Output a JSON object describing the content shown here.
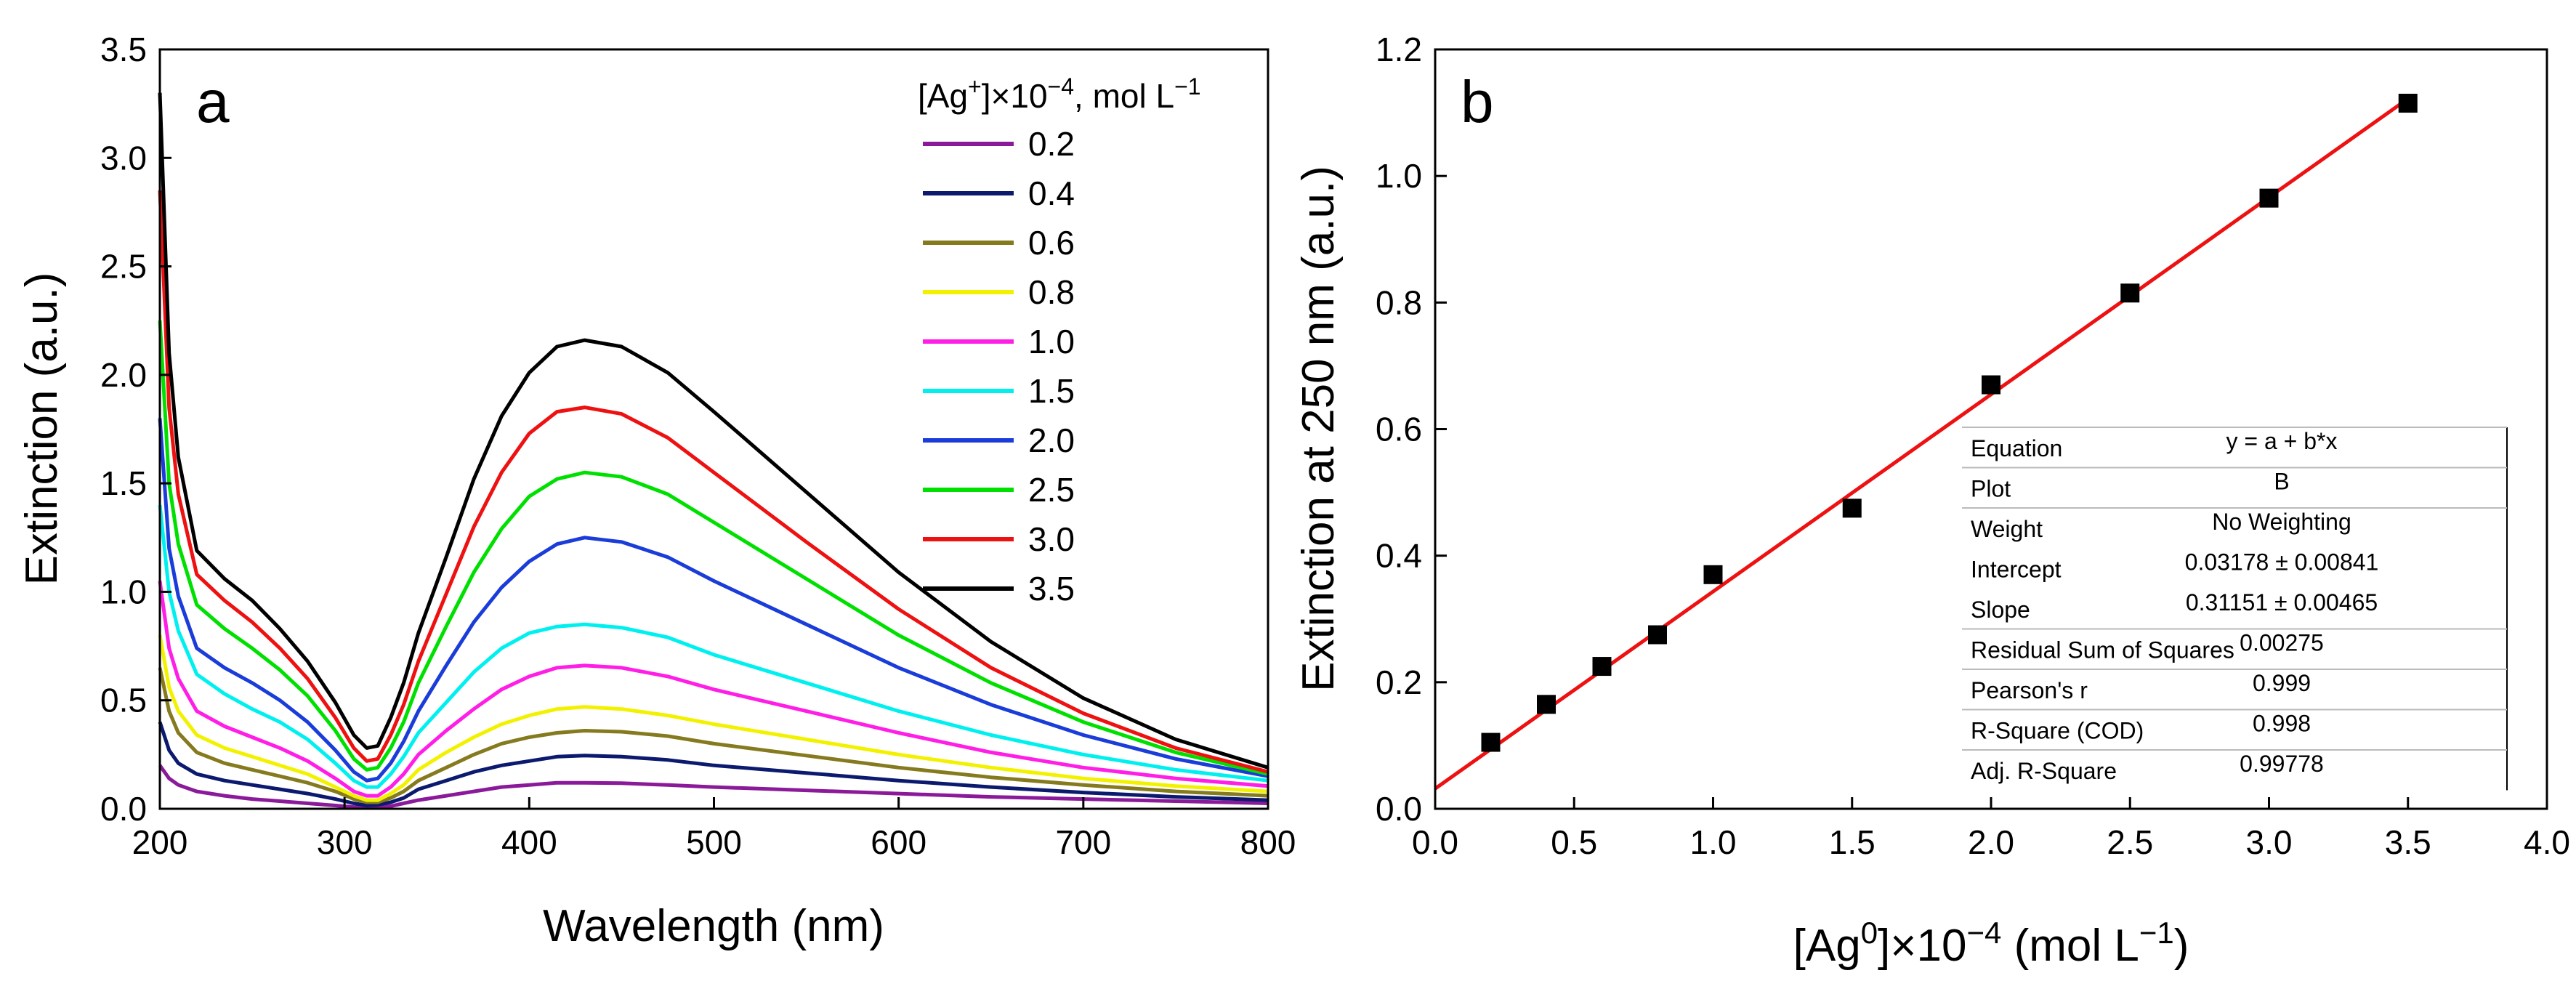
{
  "chart_data": [
    {
      "type": "line",
      "panel_label": "a",
      "xlabel": "Wavelength (nm)",
      "ylabel": "Extinction (a.u.)",
      "xlim": [
        200,
        800
      ],
      "ylim": [
        0,
        3.5
      ],
      "x_ticks": [
        200,
        300,
        400,
        500,
        600,
        700,
        800
      ],
      "y_ticks": [
        0.0,
        0.5,
        1.0,
        1.5,
        2.0,
        2.5,
        3.0,
        3.5
      ],
      "legend": {
        "title_prefix": "[Ag",
        "title_sup1": "+",
        "title_mid": "]×10",
        "title_sup2": "−4",
        "title_suffix": ", mol L",
        "title_sup3": "−1",
        "placement": "top-right"
      },
      "x": [
        200,
        205,
        210,
        220,
        235,
        250,
        265,
        280,
        295,
        305,
        312,
        318,
        325,
        332,
        340,
        355,
        370,
        385,
        400,
        415,
        430,
        450,
        475,
        500,
        550,
        600,
        650,
        700,
        750,
        800
      ],
      "series": [
        {
          "name": "0.2",
          "color": "#8b1a9a",
          "values": [
            0.2,
            0.14,
            0.11,
            0.08,
            0.06,
            0.045,
            0.035,
            0.025,
            0.015,
            0.008,
            0.005,
            0.005,
            0.012,
            0.025,
            0.04,
            0.06,
            0.08,
            0.1,
            0.11,
            0.12,
            0.12,
            0.118,
            0.11,
            0.1,
            0.085,
            0.07,
            0.055,
            0.045,
            0.035,
            0.025
          ]
        },
        {
          "name": "0.4",
          "color": "#0b1a6e",
          "values": [
            0.4,
            0.27,
            0.21,
            0.16,
            0.13,
            0.11,
            0.09,
            0.07,
            0.045,
            0.025,
            0.015,
            0.018,
            0.03,
            0.05,
            0.09,
            0.13,
            0.17,
            0.2,
            0.22,
            0.24,
            0.245,
            0.24,
            0.225,
            0.2,
            0.165,
            0.13,
            0.1,
            0.075,
            0.055,
            0.04
          ]
        },
        {
          "name": "0.6",
          "color": "#857a1e",
          "values": [
            0.65,
            0.45,
            0.35,
            0.26,
            0.21,
            0.18,
            0.15,
            0.12,
            0.08,
            0.045,
            0.03,
            0.03,
            0.05,
            0.08,
            0.13,
            0.19,
            0.25,
            0.3,
            0.33,
            0.35,
            0.36,
            0.355,
            0.335,
            0.3,
            0.245,
            0.19,
            0.145,
            0.11,
            0.08,
            0.06
          ]
        },
        {
          "name": "0.8",
          "color": "#f2f200",
          "values": [
            0.8,
            0.56,
            0.45,
            0.34,
            0.28,
            0.24,
            0.2,
            0.16,
            0.1,
            0.06,
            0.04,
            0.04,
            0.07,
            0.11,
            0.18,
            0.26,
            0.33,
            0.39,
            0.43,
            0.46,
            0.47,
            0.46,
            0.43,
            0.39,
            0.32,
            0.25,
            0.19,
            0.14,
            0.105,
            0.08
          ]
        },
        {
          "name": "1.0",
          "color": "#ff1ee6",
          "values": [
            1.05,
            0.74,
            0.6,
            0.45,
            0.38,
            0.33,
            0.28,
            0.22,
            0.14,
            0.08,
            0.06,
            0.06,
            0.1,
            0.16,
            0.25,
            0.36,
            0.46,
            0.55,
            0.61,
            0.65,
            0.66,
            0.65,
            0.61,
            0.55,
            0.45,
            0.35,
            0.26,
            0.19,
            0.14,
            0.105
          ]
        },
        {
          "name": "1.5",
          "color": "#00f0f0",
          "values": [
            1.4,
            1.0,
            0.82,
            0.62,
            0.53,
            0.46,
            0.4,
            0.32,
            0.21,
            0.13,
            0.1,
            0.1,
            0.16,
            0.24,
            0.35,
            0.49,
            0.63,
            0.74,
            0.81,
            0.84,
            0.85,
            0.835,
            0.79,
            0.71,
            0.58,
            0.45,
            0.34,
            0.25,
            0.18,
            0.13
          ]
        },
        {
          "name": "2.0",
          "color": "#1a3cd9",
          "values": [
            1.8,
            1.2,
            0.98,
            0.74,
            0.65,
            0.58,
            0.5,
            0.4,
            0.27,
            0.17,
            0.13,
            0.14,
            0.21,
            0.31,
            0.45,
            0.66,
            0.86,
            1.02,
            1.14,
            1.22,
            1.25,
            1.23,
            1.16,
            1.05,
            0.85,
            0.65,
            0.48,
            0.34,
            0.23,
            0.15
          ]
        },
        {
          "name": "2.5",
          "color": "#00e000",
          "values": [
            2.25,
            1.5,
            1.22,
            0.94,
            0.83,
            0.74,
            0.64,
            0.52,
            0.36,
            0.23,
            0.18,
            0.19,
            0.28,
            0.4,
            0.58,
            0.84,
            1.09,
            1.29,
            1.44,
            1.52,
            1.55,
            1.53,
            1.45,
            1.32,
            1.06,
            0.8,
            0.58,
            0.4,
            0.26,
            0.16
          ]
        },
        {
          "name": "3.0",
          "color": "#ee1111",
          "values": [
            2.85,
            1.85,
            1.45,
            1.08,
            0.96,
            0.86,
            0.74,
            0.6,
            0.42,
            0.28,
            0.22,
            0.23,
            0.34,
            0.48,
            0.68,
            0.99,
            1.3,
            1.55,
            1.73,
            1.83,
            1.85,
            1.82,
            1.71,
            1.55,
            1.23,
            0.92,
            0.65,
            0.44,
            0.28,
            0.17
          ]
        },
        {
          "name": "3.5",
          "color": "#000000",
          "values": [
            3.3,
            2.1,
            1.62,
            1.19,
            1.06,
            0.96,
            0.83,
            0.68,
            0.49,
            0.34,
            0.28,
            0.29,
            0.42,
            0.58,
            0.81,
            1.16,
            1.52,
            1.81,
            2.01,
            2.13,
            2.16,
            2.13,
            2.01,
            1.83,
            1.46,
            1.09,
            0.77,
            0.51,
            0.32,
            0.19
          ]
        }
      ]
    },
    {
      "type": "scatter",
      "panel_label": "b",
      "xlabel_prefix": "[Ag",
      "xlabel_sup1": "0",
      "xlabel_mid": "]×10",
      "xlabel_sup2": "−4",
      "xlabel_suffix": " (mol L",
      "xlabel_sup3": "−1",
      "xlabel_end": ")",
      "ylabel": "Extinction at 250 nm (a.u.)",
      "xlim": [
        0,
        4
      ],
      "ylim": [
        0,
        1.2
      ],
      "x_ticks": [
        0.0,
        0.5,
        1.0,
        1.5,
        2.0,
        2.5,
        3.0,
        3.5,
        4.0
      ],
      "y_ticks": [
        0.0,
        0.2,
        0.4,
        0.6,
        0.8,
        1.0,
        1.2
      ],
      "points": {
        "x": [
          0.2,
          0.4,
          0.6,
          0.8,
          1.0,
          1.5,
          2.0,
          2.5,
          3.0,
          3.5
        ],
        "y": [
          0.105,
          0.165,
          0.225,
          0.275,
          0.37,
          0.475,
          0.67,
          0.815,
          0.965,
          1.115
        ],
        "color": "#000000"
      },
      "fit": {
        "intercept": 0.03178,
        "slope": 0.31151,
        "x_range": [
          0,
          3.5
        ],
        "color": "#ee1111"
      },
      "fit_table": [
        [
          "Equation",
          "y = a + b*x"
        ],
        [
          "Plot",
          "B"
        ],
        [
          "Weight",
          "No Weighting"
        ],
        [
          "Intercept",
          "0.03178 ± 0.00841"
        ],
        [
          "Slope",
          "0.31151 ± 0.00465"
        ],
        [
          "Residual Sum of Squares",
          "0.00275"
        ],
        [
          "Pearson's r",
          "0.999"
        ],
        [
          "R-Square (COD)",
          "0.998"
        ],
        [
          "Adj. R-Square",
          "0.99778"
        ]
      ]
    }
  ]
}
